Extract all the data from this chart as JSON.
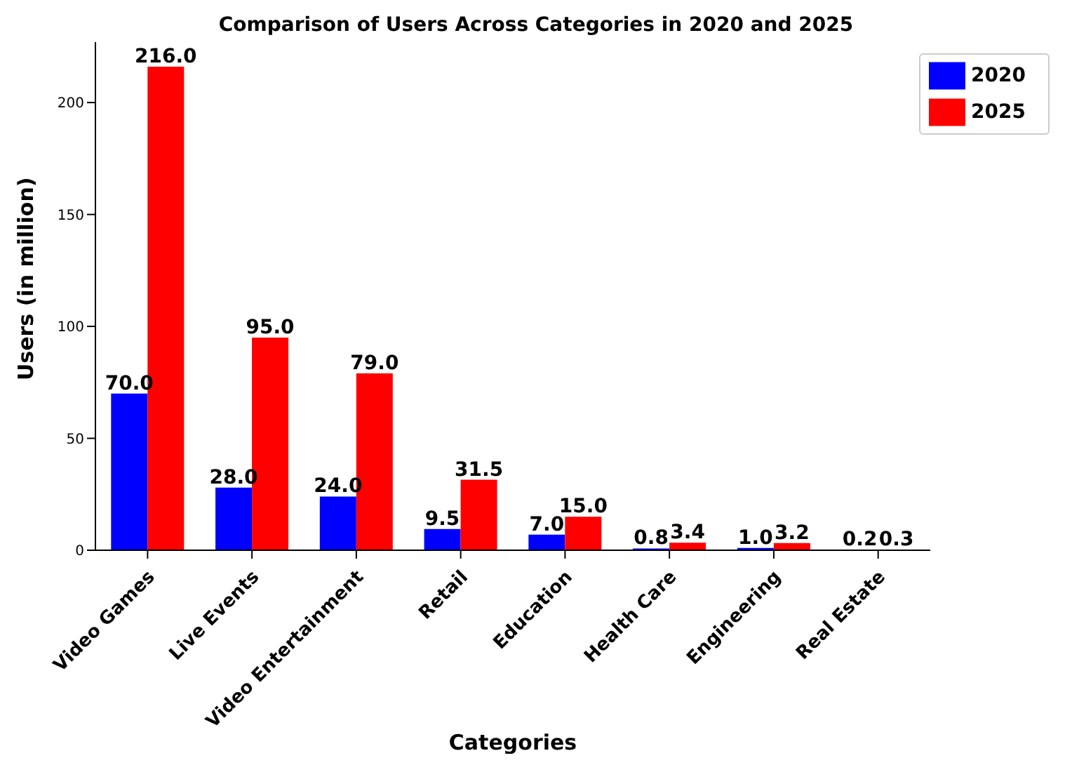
{
  "chart_data": {
    "type": "bar",
    "title": "Comparison of Users Across Categories in 2020 and 2025",
    "xlabel": "Categories",
    "ylabel": "Users (in million)",
    "categories": [
      "Video Games",
      "Live Events",
      "Video Entertainment",
      "Retail",
      "Education",
      "Health Care",
      "Engineering",
      "Real Estate"
    ],
    "series": [
      {
        "name": "2020",
        "color": "#0000ff",
        "values": [
          70.0,
          28.0,
          24.0,
          9.5,
          7.0,
          0.8,
          1.0,
          0.2
        ],
        "value_labels": [
          "70.0",
          "28.0",
          "24.0",
          "9.5",
          "7.0",
          "0.8",
          "1.0",
          "0.2"
        ]
      },
      {
        "name": "2025",
        "color": "#ff0000",
        "values": [
          216.0,
          95.0,
          79.0,
          31.5,
          15.0,
          3.4,
          3.2,
          0.3
        ],
        "value_labels": [
          "216.0",
          "95.0",
          "79.0",
          "31.5",
          "15.0",
          "3.4",
          "3.2",
          "0.3"
        ]
      }
    ],
    "ylim": [
      0,
      227
    ],
    "yticks": [
      0,
      50,
      100,
      150,
      200
    ],
    "grid": false,
    "legend": "top right"
  }
}
